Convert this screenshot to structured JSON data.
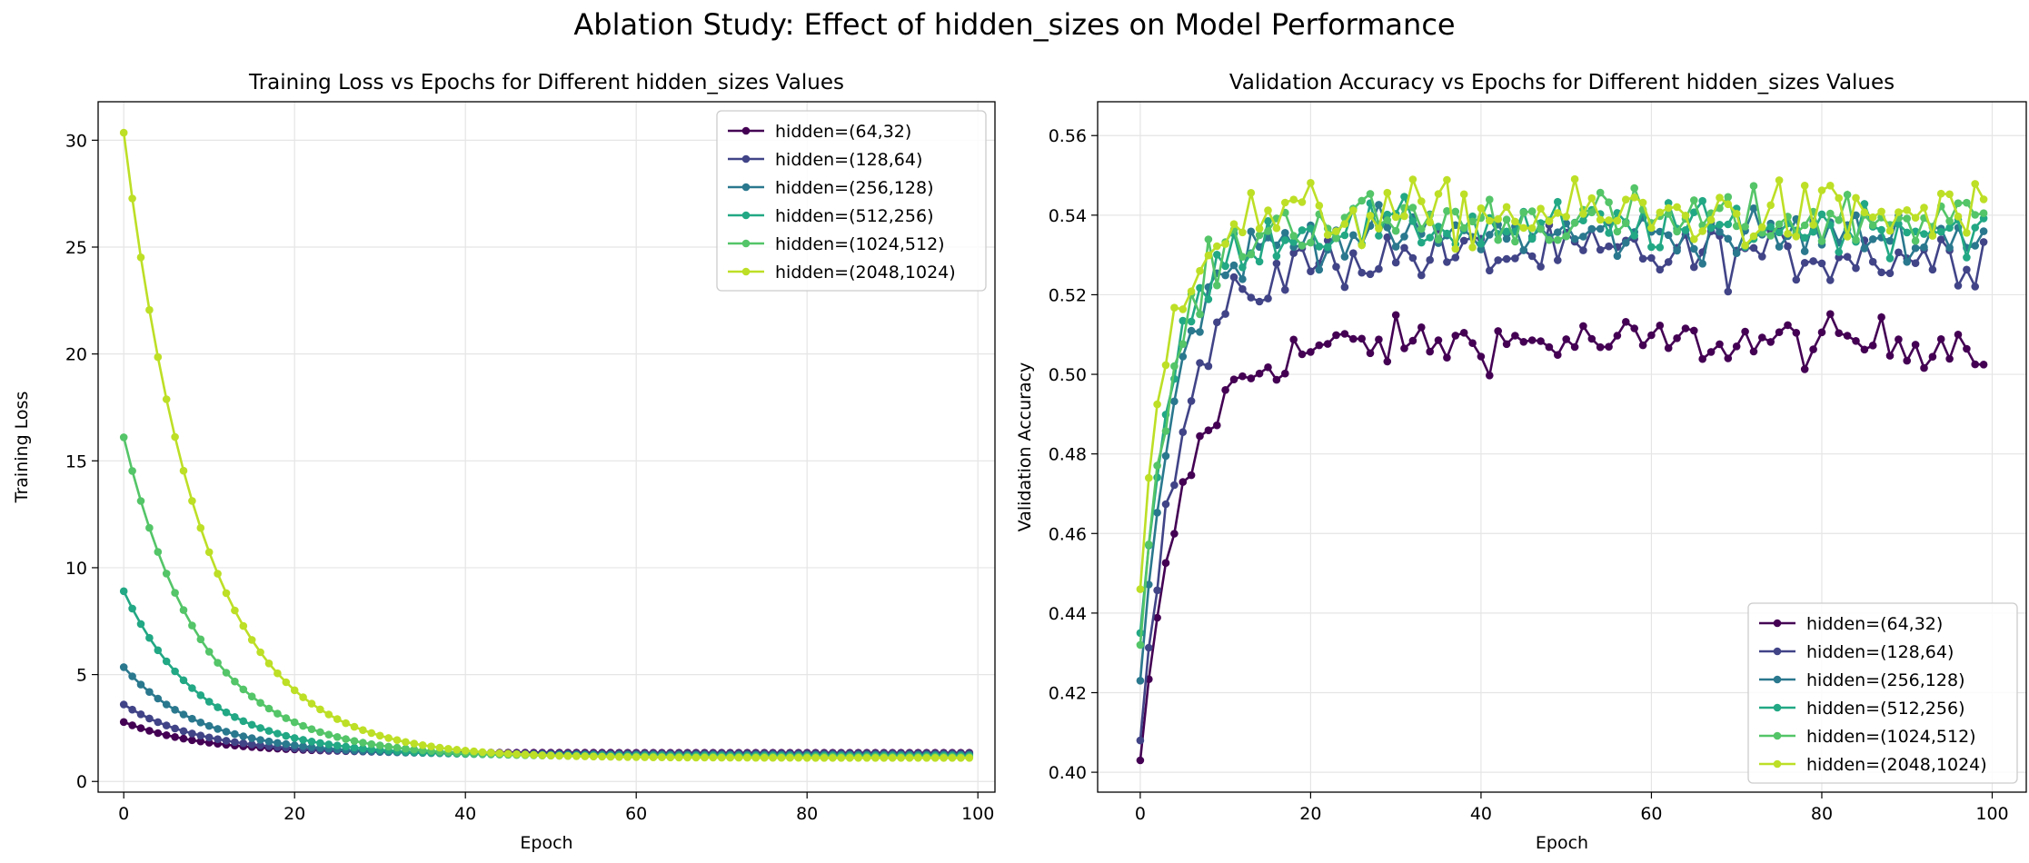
{
  "suptitle": "Ablation Study: Effect of hidden_sizes on Model Performance",
  "series_colors": [
    "#440154",
    "#414487",
    "#2a788e",
    "#22a884",
    "#54c568",
    "#bddf26"
  ],
  "chart_data": [
    {
      "type": "line",
      "title": "Training Loss vs Epochs for Different hidden_sizes Values",
      "xlabel": "Epoch",
      "ylabel": "Training Loss",
      "xlim": [
        -3,
        102
      ],
      "ylim": [
        -0.5,
        31.8
      ],
      "xticks": [
        0,
        20,
        40,
        60,
        80,
        100
      ],
      "yticks": [
        0,
        5,
        10,
        15,
        20,
        25,
        30
      ],
      "grid": true,
      "legend": "upper right",
      "generator": "exp_decay",
      "x": "epochs 0-99",
      "series": [
        {
          "name": "hidden=(64,32)",
          "start": 2.78,
          "end": 1.34,
          "tau": 9
        },
        {
          "name": "hidden=(128,64)",
          "start": 3.6,
          "end": 1.3,
          "tau": 9
        },
        {
          "name": "hidden=(256,128)",
          "start": 5.35,
          "end": 1.25,
          "tau": 9
        },
        {
          "name": "hidden=(512,256)",
          "start": 8.9,
          "end": 1.2,
          "tau": 9
        },
        {
          "name": "hidden=(1024,512)",
          "start": 16.1,
          "end": 1.15,
          "tau": 9
        },
        {
          "name": "hidden=(2048,1024)",
          "start": 30.35,
          "end": 1.1,
          "tau": 9
        }
      ]
    },
    {
      "type": "line",
      "title": "Validation Accuracy vs Epochs for Different hidden_sizes Values",
      "xlabel": "Epoch",
      "ylabel": "Validation Accuracy",
      "xlim": [
        -5,
        104
      ],
      "ylim": [
        0.395,
        0.5685
      ],
      "xticks": [
        0,
        20,
        40,
        60,
        80,
        100
      ],
      "yticks": [
        0.4,
        0.42,
        0.44,
        0.46,
        0.48,
        0.5,
        0.52,
        0.54,
        0.56
      ],
      "grid": true,
      "legend": "lower right",
      "generator": "saturating_noisy",
      "x": "epochs 0-99",
      "series": [
        {
          "name": "hidden=(64,32)",
          "start": 0.403,
          "plateau": 0.508,
          "tau": 5,
          "noise": 0.006
        },
        {
          "name": "hidden=(128,64)",
          "start": 0.408,
          "plateau": 0.53,
          "tau": 5,
          "noise": 0.007
        },
        {
          "name": "hidden=(256,128)",
          "start": 0.423,
          "plateau": 0.535,
          "tau": 4,
          "noise": 0.006
        },
        {
          "name": "hidden=(512,256)",
          "start": 0.435,
          "plateau": 0.537,
          "tau": 4,
          "noise": 0.006
        },
        {
          "name": "hidden=(1024,512)",
          "start": 0.432,
          "plateau": 0.539,
          "tau": 4,
          "noise": 0.007
        },
        {
          "name": "hidden=(2048,1024)",
          "start": 0.446,
          "plateau": 0.54,
          "tau": 3,
          "noise": 0.008
        }
      ]
    }
  ]
}
